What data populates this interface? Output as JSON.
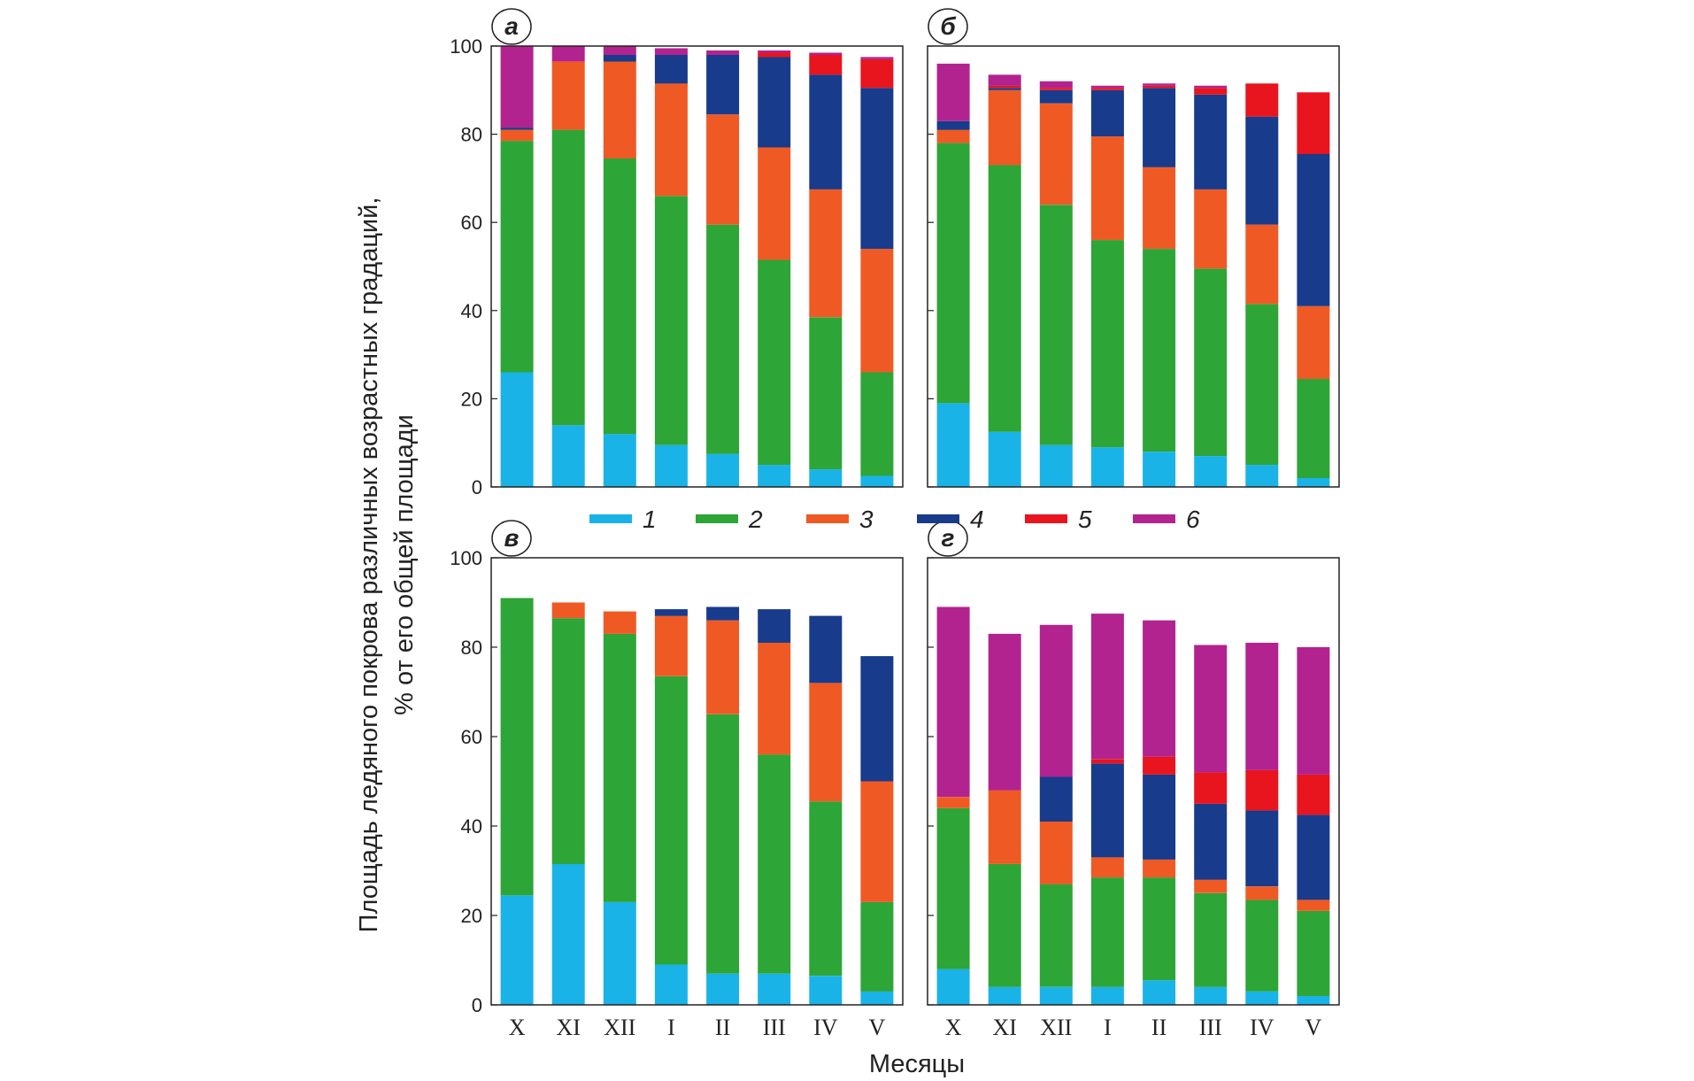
{
  "chart_data": {
    "type": "bar",
    "stacked": true,
    "ylabel_line1": "Площадь ледяного покрова различных возрастных градаций,",
    "ylabel_line2": "% от его общей площади",
    "xlabel": "Месяцы",
    "ylim": [
      0,
      100
    ],
    "yticks": [
      "0",
      "20",
      "40",
      "60",
      "80",
      "100"
    ],
    "categories": [
      "X",
      "XI",
      "XII",
      "I",
      "II",
      "III",
      "IV",
      "V"
    ],
    "legend": [
      {
        "label": "1",
        "color": "#1ab3e8"
      },
      {
        "label": "2",
        "color": "#2da537"
      },
      {
        "label": "3",
        "color": "#ef5a24"
      },
      {
        "label": "4",
        "color": "#183b8c"
      },
      {
        "label": "5",
        "color": "#e8141e"
      },
      {
        "label": "6",
        "color": "#b2238f"
      }
    ],
    "panels": [
      {
        "label": "а",
        "series": [
          [
            26,
            14,
            12,
            9.5,
            7.5,
            5,
            4,
            2.5
          ],
          [
            52.5,
            67,
            62.5,
            56.5,
            52,
            46.5,
            34.5,
            23.5
          ],
          [
            2.5,
            15.5,
            22,
            25.5,
            25,
            25.5,
            29,
            28
          ],
          [
            0.5,
            0,
            1.5,
            6.5,
            13.5,
            20.5,
            26,
            36.5
          ],
          [
            0,
            0,
            0,
            0,
            0,
            1,
            4.5,
            6.5
          ],
          [
            18.5,
            3.5,
            2,
            1.5,
            1,
            0.5,
            0.5,
            0.5
          ]
        ]
      },
      {
        "label": "б",
        "series": [
          [
            19,
            12.5,
            9.5,
            9,
            8,
            7,
            5,
            2
          ],
          [
            59,
            60.5,
            54.5,
            47,
            46,
            42.5,
            36.5,
            22.5
          ],
          [
            3,
            17,
            23,
            23.5,
            18.5,
            18,
            18,
            16.5
          ],
          [
            2,
            0.5,
            3,
            10.5,
            18,
            21.5,
            24.5,
            34.5
          ],
          [
            0,
            0.5,
            0.5,
            0.5,
            0.5,
            1.5,
            7.5,
            14
          ],
          [
            13,
            2.5,
            1.5,
            0.5,
            0.5,
            0.5,
            0,
            0
          ]
        ]
      },
      {
        "label": "в",
        "series": [
          [
            24.5,
            31.5,
            23,
            9,
            7,
            7,
            6.5,
            3
          ],
          [
            66.5,
            55,
            60,
            64.5,
            58,
            49,
            39,
            20
          ],
          [
            0,
            3.5,
            5,
            13.5,
            21,
            25,
            26.5,
            27
          ],
          [
            0,
            0,
            0,
            1.5,
            3,
            7.5,
            15,
            28
          ],
          [
            0,
            0,
            0,
            0,
            0,
            0,
            0,
            0
          ],
          [
            0,
            0,
            0,
            0,
            0,
            0,
            0,
            0
          ]
        ]
      },
      {
        "label": "г",
        "series": [
          [
            8,
            4,
            4,
            4,
            5.5,
            4,
            3,
            2
          ],
          [
            36,
            27.5,
            23,
            24.5,
            23,
            21,
            20.5,
            19
          ],
          [
            2.5,
            16.5,
            14,
            4.5,
            4,
            3,
            3,
            2.5
          ],
          [
            0,
            0,
            10,
            21,
            19,
            17,
            17,
            19
          ],
          [
            0,
            0,
            0,
            1,
            4,
            7,
            9,
            9
          ],
          [
            42.5,
            35,
            34,
            32.5,
            30.5,
            28.5,
            28.5,
            28.5
          ]
        ]
      }
    ]
  }
}
